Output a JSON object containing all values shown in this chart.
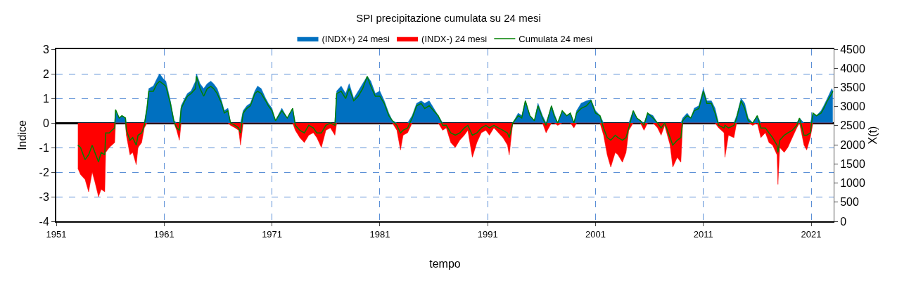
{
  "chart_data": {
    "type": "area",
    "title": "SPI precipitazione cumulata su 24 mesi",
    "xlabel": "tempo",
    "ylabel": "Indice",
    "y2label": "X(t)",
    "x": [
      "1953-01",
      "1953-04",
      "1953-09",
      "1954-01",
      "1954-05",
      "1954-08",
      "1954-12",
      "1955-03",
      "1955-07",
      "1955-08",
      "1955-12",
      "1956-03",
      "1956-06",
      "1956-07",
      "1956-11",
      "1957-02",
      "1957-06",
      "1957-07",
      "1957-11",
      "1958-02",
      "1958-06",
      "1958-08",
      "1958-12",
      "1959-03",
      "1959-06",
      "1959-08",
      "1960-01",
      "1960-05",
      "1960-08",
      "1960-12",
      "1961-03",
      "1961-08",
      "1961-12",
      "1962-03",
      "1962-06",
      "1962-08",
      "1962-12",
      "1963-03",
      "1963-07",
      "1963-12",
      "1964-01",
      "1964-05",
      "1964-09",
      "1965-01",
      "1965-05",
      "1965-08",
      "1965-12",
      "1966-05",
      "1966-08",
      "1966-12",
      "1967-03",
      "1967-08",
      "1967-12",
      "1968-02",
      "1968-05",
      "1968-09",
      "1969-01",
      "1969-06",
      "1969-09",
      "1970-01",
      "1970-06",
      "1970-09",
      "1971-01",
      "1971-05",
      "1971-12",
      "1972-06",
      "1972-12",
      "1973-03",
      "1973-08",
      "1974-01",
      "1974-06",
      "1974-11",
      "1975-03",
      "1975-08",
      "1976-01",
      "1976-06",
      "1976-11",
      "1977-01",
      "1977-06",
      "1977-11",
      "1978-03",
      "1978-08",
      "1979-01",
      "1979-06",
      "1979-11",
      "1980-03",
      "1980-08",
      "1981-01",
      "1981-06",
      "1981-11",
      "1982-03",
      "1982-08",
      "1982-12",
      "1983-03",
      "1983-08",
      "1984-01",
      "1984-06",
      "1984-11",
      "1985-03",
      "1985-08",
      "1986-01",
      "1986-06",
      "1986-11",
      "1987-03",
      "1987-08",
      "1988-01",
      "1988-06",
      "1988-11",
      "1989-03",
      "1989-08",
      "1990-01",
      "1990-06",
      "1990-11",
      "1991-03",
      "1991-08",
      "1992-01",
      "1992-06",
      "1992-11",
      "1993-01",
      "1993-05",
      "1993-11",
      "1994-03",
      "1994-07",
      "1994-12",
      "1995-05",
      "1995-09",
      "1996-02",
      "1996-06",
      "1996-12",
      "1997-03",
      "1997-07",
      "1997-12",
      "1998-05",
      "1998-09",
      "1999-01",
      "1999-04",
      "1999-09",
      "2000-03",
      "2000-08",
      "2001-01",
      "2001-06",
      "2001-10",
      "2002-02",
      "2002-06",
      "2002-11",
      "2003-02",
      "2003-07",
      "2003-11",
      "2004-02",
      "2004-07",
      "2004-11",
      "2005-03",
      "2005-07",
      "2005-11",
      "2006-05",
      "2006-10",
      "2007-02",
      "2007-06",
      "2007-12",
      "2008-03",
      "2008-08",
      "2008-12",
      "2009-02",
      "2009-07",
      "2009-11",
      "2010-03",
      "2010-08",
      "2011-01",
      "2011-05",
      "2011-10",
      "2012-02",
      "2012-06",
      "2012-12",
      "2013-01",
      "2013-05",
      "2013-11",
      "2014-02",
      "2014-07",
      "2014-11",
      "2015-03",
      "2015-08",
      "2016-01",
      "2016-05",
      "2016-10",
      "2017-02",
      "2017-06",
      "2017-11",
      "2017-12",
      "2018-02",
      "2018-07",
      "2018-11",
      "2019-04",
      "2019-09",
      "2019-12",
      "2020-05",
      "2020-08",
      "2020-12",
      "2021-03",
      "2021-07",
      "2021-12",
      "2022-03",
      "2022-07",
      "2022-12",
      "2023-01"
    ],
    "series": [
      {
        "name": "(INDX+) 24 mesi",
        "color": "#0070c0",
        "values": [
          0,
          0,
          0,
          0,
          0,
          0,
          0,
          0,
          0,
          0,
          0,
          0,
          0,
          0.5,
          0.2,
          0.3,
          0.2,
          0,
          0,
          0,
          0,
          0,
          0,
          0,
          0.7,
          1.4,
          1.5,
          1.8,
          2.0,
          1.8,
          1.7,
          0.9,
          0.1,
          0,
          0,
          0.7,
          1.0,
          1.2,
          1.3,
          1.7,
          2.0,
          1.6,
          1.4,
          1.6,
          1.7,
          1.6,
          1.4,
          0.9,
          0.5,
          0.6,
          0,
          0,
          0,
          0,
          0.5,
          0.7,
          0.8,
          1.3,
          1.5,
          1.4,
          1.0,
          0.8,
          0.6,
          0.1,
          0.6,
          0.2,
          0.6,
          0,
          0,
          0,
          0,
          0,
          0,
          0,
          0,
          0,
          0,
          1.3,
          1.5,
          1.2,
          1.6,
          1.0,
          1.3,
          1.6,
          1.9,
          1.7,
          1.2,
          1.3,
          0.9,
          0.4,
          0.1,
          0,
          0,
          0,
          0,
          0.3,
          0.8,
          0.9,
          0.8,
          0.9,
          0.6,
          0.3,
          0,
          0,
          0,
          0,
          0,
          0,
          0,
          0,
          0,
          0,
          0,
          0,
          0,
          0,
          0,
          0,
          0,
          0,
          0.4,
          0.3,
          0.9,
          0.3,
          0.1,
          0.8,
          0.3,
          0,
          0.7,
          0.4,
          0,
          0.5,
          0.3,
          0.4,
          0,
          0.5,
          0.8,
          0.9,
          0.95,
          0.5,
          0.3,
          0,
          0,
          0,
          0,
          0,
          0,
          0,
          0,
          0.5,
          0.2,
          0.1,
          0,
          0.4,
          0.3,
          0,
          0,
          0,
          0,
          0,
          0,
          0,
          0.2,
          0.4,
          0.2,
          0.6,
          0.7,
          1.4,
          0.9,
          0.9,
          0.6,
          0,
          0,
          0,
          0,
          0,
          0.3,
          1.0,
          0.8,
          0.2,
          0,
          0.3,
          0,
          0,
          0,
          0,
          0,
          0,
          0,
          0,
          0,
          0,
          0,
          0.2,
          0,
          0,
          0,
          0.4,
          0.3,
          0.5,
          0.7,
          1.0,
          1.4,
          1.3
        ]
      },
      {
        "name": "(INDX-) 24 mesi",
        "color": "#ff0000",
        "values": [
          -1.85,
          -2.1,
          -2.3,
          -2.8,
          -2.0,
          -2.4,
          -3.0,
          -2.7,
          -2.8,
          -1.2,
          -1.0,
          -0.9,
          -0.8,
          0,
          0,
          0,
          0,
          -0.5,
          -1.3,
          -1.2,
          -1.7,
          -1.0,
          -0.8,
          -0.2,
          0,
          0,
          0,
          0,
          0,
          0,
          0,
          0,
          0,
          -0.3,
          -0.7,
          0,
          0,
          0,
          0,
          0,
          0,
          0,
          0,
          0,
          0,
          0,
          0,
          0,
          0,
          0,
          -0.1,
          -0.2,
          -0.3,
          -0.9,
          0,
          0,
          0,
          0,
          0,
          0,
          0,
          0,
          0,
          0,
          0,
          0,
          0,
          -0.3,
          -0.6,
          -0.8,
          -0.5,
          -0.4,
          -0.6,
          -1.0,
          -0.3,
          -0.2,
          -0.5,
          0,
          0,
          0,
          0,
          0,
          0,
          0,
          0,
          0,
          0,
          0,
          0,
          0,
          0,
          -0.3,
          -1.1,
          -0.5,
          -0.4,
          0,
          0,
          0,
          0,
          0,
          0,
          0,
          -0.3,
          -0.2,
          -0.8,
          -1.0,
          -0.7,
          -0.5,
          -0.3,
          -1.4,
          -0.8,
          -0.4,
          -0.3,
          -0.5,
          -0.2,
          -0.4,
          -0.6,
          -0.9,
          -1.3,
          0,
          0,
          0,
          0,
          0,
          0,
          0,
          0,
          -0.4,
          0,
          0,
          -0.1,
          0,
          0,
          0,
          -0.2,
          0,
          0,
          0,
          0,
          0,
          0,
          -0.5,
          -1.3,
          -1.8,
          -1.2,
          -1.3,
          -1.6,
          -1.2,
          -0.3,
          0,
          0,
          0,
          -0.3,
          0,
          0,
          -0.2,
          -0.5,
          -0.1,
          -0.9,
          -1.8,
          -1.4,
          -1.6,
          0,
          0,
          0,
          0,
          0,
          0,
          0,
          0,
          0,
          -0.2,
          -0.4,
          -1.4,
          -0.5,
          -0.6,
          0,
          0,
          0,
          0,
          -0.1,
          0,
          -0.6,
          -0.4,
          -0.8,
          -0.9,
          -1.3,
          -2.5,
          -1.0,
          -1.2,
          -1.0,
          -0.6,
          -0.2,
          0,
          -0.9,
          -1.1,
          -0.6,
          0,
          0,
          0,
          0,
          0,
          0,
          0
        ]
      },
      {
        "name": "Cumulata 24 mesi",
        "type": "line",
        "axis": "y2",
        "color": "#008000",
        "values": [
          1990,
          1930,
          1610,
          1740,
          1990,
          1800,
          1550,
          1800,
          1740,
          2310,
          2310,
          2380,
          2440,
          2920,
          2700,
          2760,
          2700,
          2380,
          2120,
          2190,
          1990,
          2250,
          2310,
          2510,
          2950,
          3400,
          3400,
          3590,
          3660,
          3590,
          3530,
          3080,
          2600,
          2440,
          2380,
          2950,
          3150,
          3270,
          3340,
          3470,
          3790,
          3470,
          3270,
          3470,
          3530,
          3470,
          3340,
          3080,
          2830,
          2890,
          2570,
          2510,
          2440,
          2310,
          2830,
          2950,
          3020,
          3340,
          3400,
          3340,
          3150,
          3020,
          2890,
          2630,
          2890,
          2700,
          2950,
          2510,
          2380,
          2310,
          2510,
          2440,
          2310,
          2310,
          2510,
          2570,
          2510,
          3340,
          3400,
          3210,
          3470,
          3150,
          3270,
          3470,
          3790,
          3530,
          3270,
          3270,
          3080,
          2760,
          2630,
          2510,
          2310,
          2380,
          2440,
          2700,
          3020,
          3080,
          2950,
          3020,
          2890,
          2760,
          2510,
          2510,
          2310,
          2250,
          2310,
          2440,
          2510,
          2250,
          2310,
          2440,
          2510,
          2440,
          2510,
          2440,
          2380,
          2310,
          2190,
          2570,
          2760,
          2700,
          3150,
          2760,
          2630,
          3020,
          2700,
          2510,
          3020,
          2760,
          2570,
          2890,
          2760,
          2830,
          2570,
          2830,
          2950,
          3020,
          3150,
          2830,
          2760,
          2440,
          2190,
          2120,
          2250,
          2190,
          2120,
          2190,
          2440,
          2890,
          2700,
          2630,
          2510,
          2830,
          2700,
          2570,
          2440,
          2570,
          2190,
          1990,
          2120,
          2190,
          2630,
          2760,
          2700,
          2890,
          2950,
          3400,
          3080,
          3080,
          2830,
          2510,
          2440,
          2510,
          2440,
          2510,
          2700,
          3150,
          2950,
          2630,
          2570,
          2760,
          2440,
          2440,
          2310,
          2190,
          1990,
          1800,
          2120,
          2250,
          2310,
          2380,
          2510,
          2700,
          2250,
          2250,
          2310,
          2830,
          2760,
          2830,
          2950,
          3150,
          3340,
          3400
        ]
      }
    ],
    "xlim": [
      "1951",
      "2023-02"
    ],
    "xticks": [
      "1951",
      "1961",
      "1971",
      "1981",
      "1991",
      "2001",
      "2011",
      "2021"
    ],
    "ylim": [
      -4,
      3
    ],
    "yticks": [
      -4,
      -3,
      -2,
      -1,
      0,
      1,
      2,
      3
    ],
    "y2lim": [
      0,
      4500
    ],
    "y2ticks": [
      0,
      500,
      1000,
      1500,
      2000,
      2500,
      3000,
      3500,
      4000,
      4500
    ],
    "grid": true,
    "legend": "top"
  }
}
